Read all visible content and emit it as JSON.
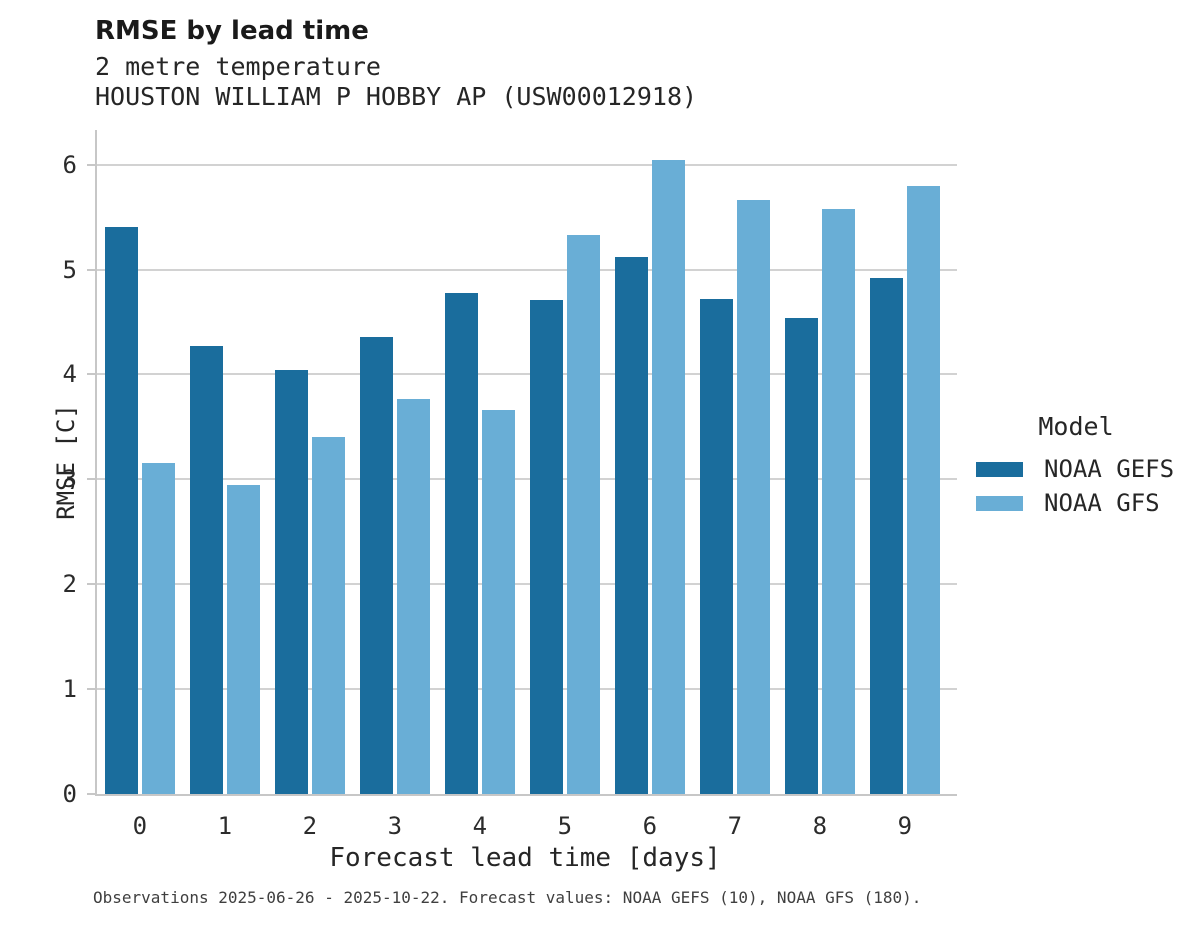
{
  "header": {
    "title": "RMSE by lead time",
    "subtitle1": "2 metre temperature",
    "subtitle2": "HOUSTON WILLIAM P HOBBY AP (USW00012918)"
  },
  "legend": {
    "title": "Model",
    "items": [
      {
        "label": "NOAA GEFS",
        "color": "#1a6d9d"
      },
      {
        "label": "NOAA GFS",
        "color": "#69aed6"
      }
    ]
  },
  "footer": {
    "text": "Observations 2025-06-26 - 2025-10-22. Forecast values: NOAA GEFS (10), NOAA GFS (180)."
  },
  "colors": {
    "gefs_dark_blue": "#1a6d9d",
    "gfs_light_blue": "#69aed6",
    "gridline": "#d2d2d2",
    "axis_spine": "#c7c7c7"
  },
  "chart_data": {
    "type": "bar",
    "title": "RMSE by lead time",
    "subtitle": "2 metre temperature",
    "station": "HOUSTON WILLIAM P HOBBY AP (USW00012918)",
    "categories": [
      "0",
      "1",
      "2",
      "3",
      "4",
      "5",
      "6",
      "7",
      "8",
      "9"
    ],
    "series": [
      {
        "name": "NOAA GEFS",
        "color": "#1a6d9d",
        "values": [
          5.41,
          4.27,
          4.04,
          4.36,
          4.78,
          4.71,
          5.12,
          4.72,
          4.54,
          4.92
        ]
      },
      {
        "name": "NOAA GFS",
        "color": "#69aed6",
        "values": [
          3.16,
          2.95,
          3.4,
          3.77,
          3.66,
          5.33,
          6.04,
          5.66,
          5.58,
          5.8
        ]
      }
    ],
    "xlabel": "Forecast lead time [days]",
    "ylabel": "RMSE [C]",
    "ylim": [
      0,
      6.33
    ],
    "yticks": [
      0,
      1,
      2,
      3,
      4,
      5,
      6
    ],
    "grid": "horizontal-only",
    "legend_position": "right-of-plot",
    "legend_title": "Model"
  }
}
